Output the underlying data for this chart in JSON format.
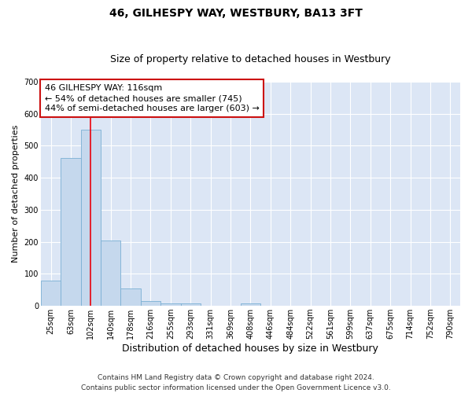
{
  "title": "46, GILHESPY WAY, WESTBURY, BA13 3FT",
  "subtitle": "Size of property relative to detached houses in Westbury",
  "xlabel": "Distribution of detached houses by size in Westbury",
  "ylabel": "Number of detached properties",
  "footer_line1": "Contains HM Land Registry data © Crown copyright and database right 2024.",
  "footer_line2": "Contains public sector information licensed under the Open Government Licence v3.0.",
  "bar_labels": [
    "25sqm",
    "63sqm",
    "102sqm",
    "140sqm",
    "178sqm",
    "216sqm",
    "255sqm",
    "293sqm",
    "331sqm",
    "369sqm",
    "408sqm",
    "446sqm",
    "484sqm",
    "522sqm",
    "561sqm",
    "599sqm",
    "637sqm",
    "675sqm",
    "714sqm",
    "752sqm",
    "790sqm"
  ],
  "bar_values": [
    78,
    462,
    550,
    203,
    55,
    15,
    8,
    8,
    0,
    0,
    8,
    0,
    0,
    0,
    0,
    0,
    0,
    0,
    0,
    0,
    0
  ],
  "bar_color": "#c5d8ed",
  "bar_edge_color": "#7ab0d4",
  "red_line_x": 2.0,
  "red_line_color": "#e8000a",
  "annotation_line1": "46 GILHESPY WAY: 116sqm",
  "annotation_line2": "← 54% of detached houses are smaller (745)",
  "annotation_line3": "44% of semi-detached houses are larger (603) →",
  "annotation_box_facecolor": "#ffffff",
  "annotation_box_edgecolor": "#cc1111",
  "ylim": [
    0,
    700
  ],
  "yticks": [
    0,
    100,
    200,
    300,
    400,
    500,
    600,
    700
  ],
  "plot_bg_color": "#dce6f5",
  "grid_color": "#ffffff",
  "title_fontsize": 10,
  "subtitle_fontsize": 9,
  "ylabel_fontsize": 8,
  "xlabel_fontsize": 9,
  "tick_fontsize": 7,
  "annotation_fontsize": 8,
  "footer_fontsize": 6.5
}
